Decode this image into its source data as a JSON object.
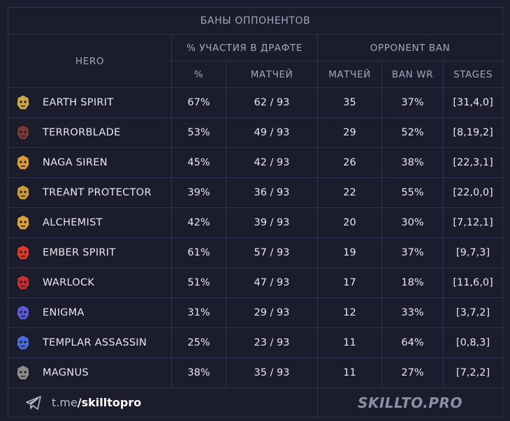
{
  "table": {
    "title": "БАНЫ ОППОНЕНТОВ",
    "group_participation": "% УЧАСТИЯ В ДРАФТЕ",
    "group_opponent_ban": "OPPONENT BAN",
    "col_hero": "HERO",
    "col_percent": "%",
    "col_matches": "МАТЧЕЙ",
    "col_ban_matches": "МАТЧЕЙ",
    "col_ban_wr": "BAN WR",
    "col_stages": "STAGES",
    "rows": [
      {
        "hero": "EARTH SPIRIT",
        "icon": "earth-spirit-icon",
        "color": "#c9a64a",
        "pct": "67%",
        "matches": "62 / 93",
        "ban_matches": "35",
        "ban_wr": "37%",
        "stages": "[31,4,0]"
      },
      {
        "hero": "TERRORBLADE",
        "icon": "terrorblade-icon",
        "color": "#7a3a3a",
        "pct": "53%",
        "matches": "49 / 93",
        "ban_matches": "29",
        "ban_wr": "52%",
        "stages": "[8,19,2]"
      },
      {
        "hero": "NAGA SIREN",
        "icon": "naga-siren-icon",
        "color": "#d89a3a",
        "pct": "45%",
        "matches": "42 / 93",
        "ban_matches": "26",
        "ban_wr": "38%",
        "stages": "[22,3,1]"
      },
      {
        "hero": "TREANT PROTECTOR",
        "icon": "treant-protector-icon",
        "color": "#c99a3e",
        "pct": "39%",
        "matches": "36 / 93",
        "ban_matches": "22",
        "ban_wr": "55%",
        "stages": "[22,0,0]"
      },
      {
        "hero": "ALCHEMIST",
        "icon": "alchemist-icon",
        "color": "#d6a03a",
        "pct": "42%",
        "matches": "39 / 93",
        "ban_matches": "20",
        "ban_wr": "30%",
        "stages": "[7,12,1]"
      },
      {
        "hero": "EMBER SPIRIT",
        "icon": "ember-spirit-icon",
        "color": "#d83a2a",
        "pct": "61%",
        "matches": "57 / 93",
        "ban_matches": "19",
        "ban_wr": "37%",
        "stages": "[9,7,3]"
      },
      {
        "hero": "WARLOCK",
        "icon": "warlock-icon",
        "color": "#c43030",
        "pct": "51%",
        "matches": "47 / 93",
        "ban_matches": "17",
        "ban_wr": "18%",
        "stages": "[11,6,0]"
      },
      {
        "hero": "ENIGMA",
        "icon": "enigma-icon",
        "color": "#5a5ad0",
        "pct": "31%",
        "matches": "29 / 93",
        "ban_matches": "12",
        "ban_wr": "33%",
        "stages": "[3,7,2]"
      },
      {
        "hero": "TEMPLAR ASSASSIN",
        "icon": "templar-assassin-icon",
        "color": "#4a6ad8",
        "pct": "25%",
        "matches": "23 / 93",
        "ban_matches": "11",
        "ban_wr": "64%",
        "stages": "[0,8,3]"
      },
      {
        "hero": "MAGNUS",
        "icon": "magnus-icon",
        "color": "#8a8a8a",
        "pct": "38%",
        "matches": "35 / 93",
        "ban_matches": "11",
        "ban_wr": "27%",
        "stages": "[7,2,2]"
      }
    ]
  },
  "footer": {
    "telegram_icon": "telegram-icon",
    "link_prefix": "t.me ",
    "link_handle": "/skilltopro",
    "brand": "SKILLTO.PRO"
  },
  "colors": {
    "background": "#1b1c2c",
    "border": "#2e3350",
    "header_text": "#a4a8bc",
    "cell_text": "#e8e8f0"
  }
}
